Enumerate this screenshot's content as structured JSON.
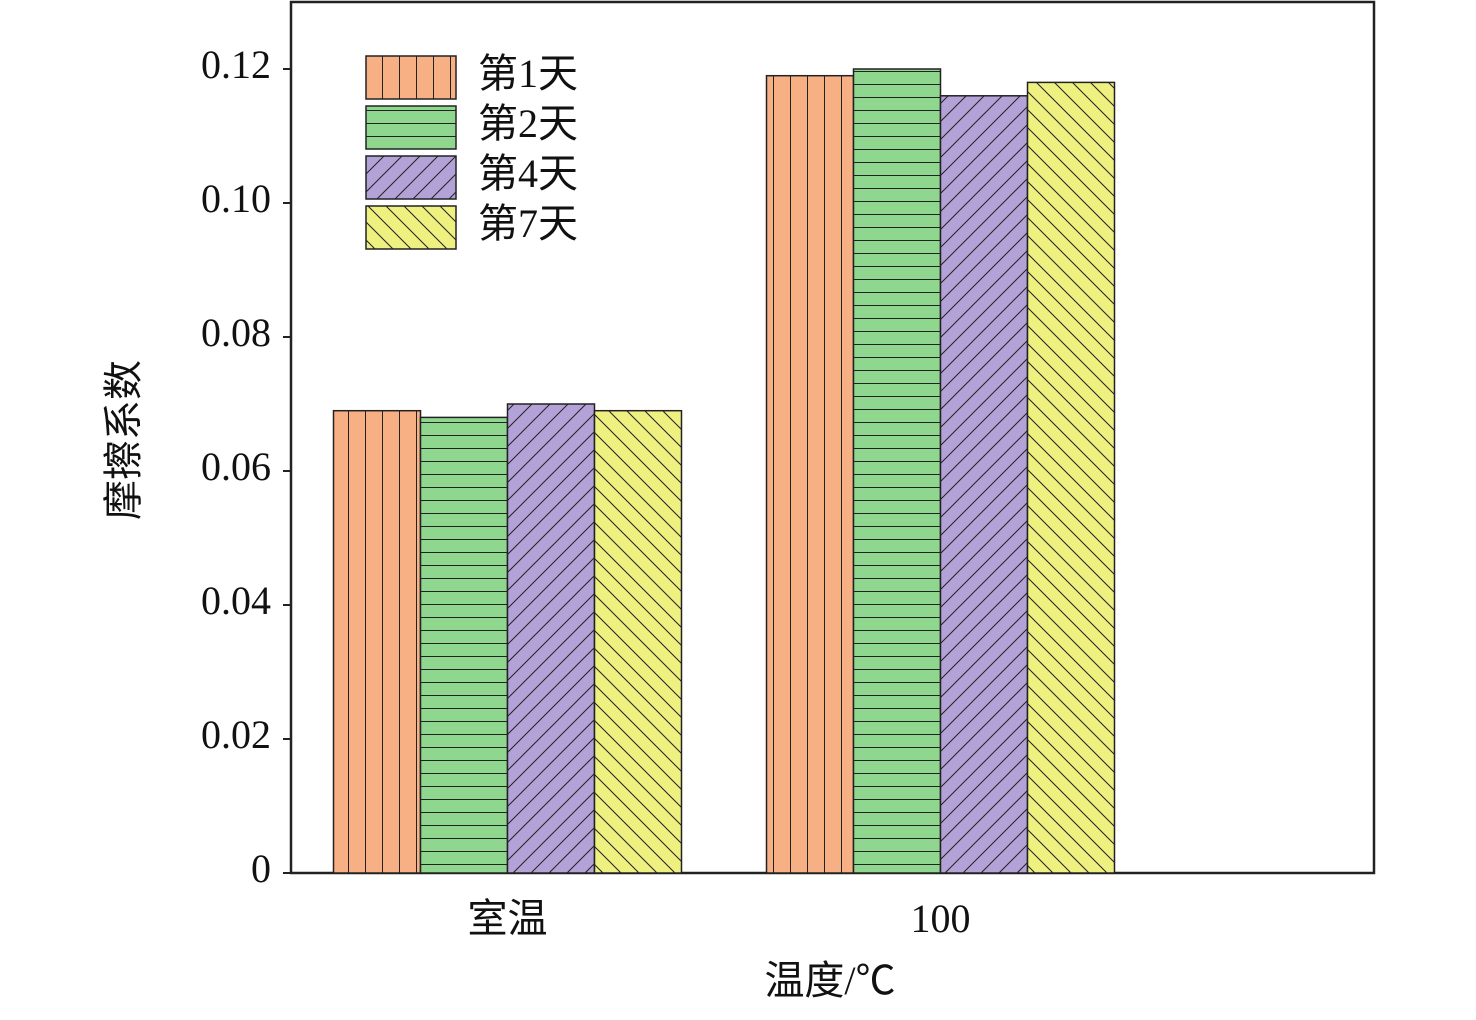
{
  "chart_data": {
    "type": "bar",
    "categories": [
      "室温",
      "100"
    ],
    "series": [
      {
        "name": "第1天",
        "color": "#f7b083",
        "hatch": "vertical",
        "values": [
          0.069,
          0.119
        ]
      },
      {
        "name": "第2天",
        "color": "#8fd68e",
        "hatch": "horizontal",
        "values": [
          0.068,
          0.12
        ]
      },
      {
        "name": "第4天",
        "color": "#b3a2d8",
        "hatch": "diagonal-up",
        "values": [
          0.07,
          0.116
        ]
      },
      {
        "name": "第7天",
        "color": "#eef07f",
        "hatch": "diagonal-down",
        "values": [
          0.069,
          0.118
        ]
      }
    ],
    "ylabel": "摩擦系数",
    "xlabel": "温度/℃",
    "ylim": [
      0,
      0.13
    ],
    "yticks": [
      0,
      0.02,
      0.04,
      0.06,
      0.08,
      {
        "value": 0.1,
        "label": "0.10"
      },
      0.12
    ],
    "legend": "upper left"
  }
}
